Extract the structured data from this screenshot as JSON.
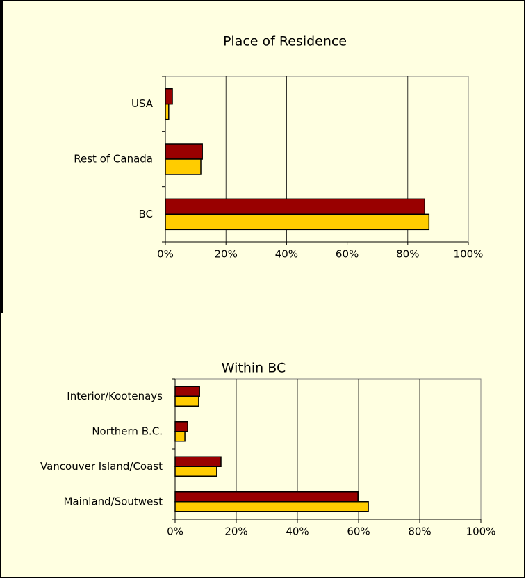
{
  "chart_data": [
    {
      "type": "barh",
      "title": "Place of Residence",
      "categories": [
        "USA",
        "Rest of Canada",
        "BC"
      ],
      "series": [
        {
          "color": "#990000",
          "values": [
            2.3,
            12.2,
            85.6
          ]
        },
        {
          "color": "#ffcc00",
          "values": [
            1.1,
            11.7,
            87.0
          ]
        }
      ],
      "xlim": [
        0,
        100
      ],
      "xticks": [
        {
          "value": 0,
          "label": "0%"
        },
        {
          "value": 20,
          "label": "20%"
        },
        {
          "value": 40,
          "label": "40%"
        },
        {
          "value": 60,
          "label": "60%"
        },
        {
          "value": 80,
          "label": "80%"
        },
        {
          "value": 100,
          "label": "100%"
        }
      ],
      "grid": true
    },
    {
      "type": "barh",
      "title": "Within BC",
      "categories": [
        "Interior/Kootenays",
        "Northern B.C.",
        "Vancouver Island/Coast",
        "Mainland/Soutwest"
      ],
      "series": [
        {
          "color": "#990000",
          "values": [
            8.0,
            4.1,
            15.0,
            59.8
          ]
        },
        {
          "color": "#ffcc00",
          "values": [
            7.7,
            3.2,
            13.6,
            63.2
          ]
        }
      ],
      "xlim": [
        0,
        100
      ],
      "xticks": [
        {
          "value": 0,
          "label": "0%"
        },
        {
          "value": 20,
          "label": "20%"
        },
        {
          "value": 40,
          "label": "40%"
        },
        {
          "value": 60,
          "label": "60%"
        },
        {
          "value": 80,
          "label": "80%"
        },
        {
          "value": 100,
          "label": "100%"
        }
      ],
      "grid": true
    }
  ]
}
